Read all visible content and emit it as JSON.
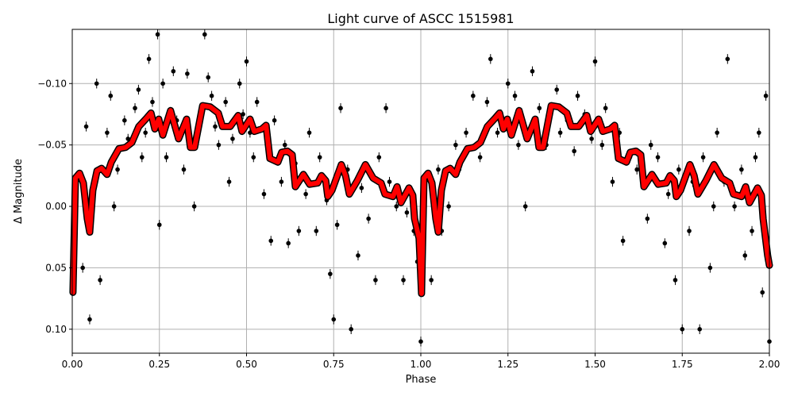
{
  "chart_data": {
    "type": "scatter",
    "title": "Light curve of ASCC 1515981",
    "xlabel": "Phase",
    "ylabel": "Δ Magnitude",
    "xlim": [
      0,
      2
    ],
    "ylim": [
      0.1195,
      -0.1441
    ],
    "y_inverted": true,
    "grid": true,
    "x_ticks": [
      "0.00",
      "0.25",
      "0.50",
      "0.75",
      "1.00",
      "1.25",
      "1.50",
      "1.75",
      "2.00"
    ],
    "x_tick_values": [
      0,
      0.25,
      0.5,
      0.75,
      1.0,
      1.25,
      1.5,
      1.75,
      2.0
    ],
    "y_ticks": [
      "−0.10",
      "−0.05",
      "0.00",
      "0.05",
      "0.10"
    ],
    "y_tick_values": [
      -0.1,
      -0.05,
      0.0,
      0.05,
      0.1
    ],
    "colors": {
      "points": "#000000",
      "model": "#ff0000",
      "model_outline": "#000000",
      "grid": "#b0b0b0"
    },
    "points_error": 0.004,
    "points": [
      [
        0.245,
        -0.14
      ],
      [
        0.22,
        -0.12
      ],
      [
        0.11,
        -0.09
      ],
      [
        0.07,
        -0.1
      ],
      [
        0.04,
        -0.065
      ],
      [
        0.03,
        0.05
      ],
      [
        0.05,
        0.092
      ],
      [
        0.08,
        0.06
      ],
      [
        0.12,
        0.0
      ],
      [
        0.15,
        -0.07
      ],
      [
        0.18,
        -0.08
      ],
      [
        0.2,
        -0.04
      ],
      [
        0.25,
        0.015
      ],
      [
        0.26,
        -0.1
      ],
      [
        0.29,
        -0.11
      ],
      [
        0.33,
        -0.108
      ],
      [
        0.35,
        0.0
      ],
      [
        0.38,
        -0.14
      ],
      [
        0.4,
        -0.09
      ],
      [
        0.42,
        -0.05
      ],
      [
        0.45,
        -0.02
      ],
      [
        0.48,
        -0.1
      ],
      [
        0.5,
        -0.118
      ],
      [
        0.52,
        -0.04
      ],
      [
        0.55,
        -0.01
      ],
      [
        0.57,
        0.028
      ],
      [
        0.6,
        -0.02
      ],
      [
        0.62,
        0.03
      ],
      [
        0.65,
        0.02
      ],
      [
        0.68,
        -0.06
      ],
      [
        0.7,
        0.02
      ],
      [
        0.74,
        0.055
      ],
      [
        0.75,
        0.092
      ],
      [
        0.77,
        -0.08
      ],
      [
        0.8,
        0.1
      ],
      [
        0.82,
        0.04
      ],
      [
        0.87,
        0.06
      ],
      [
        0.9,
        -0.08
      ],
      [
        0.93,
        0.0
      ],
      [
        0.95,
        0.06
      ],
      [
        0.98,
        0.02
      ],
      [
        1.0,
        0.11
      ],
      [
        1.03,
        0.06
      ],
      [
        1.05,
        -0.03
      ],
      [
        1.08,
        0.0
      ],
      [
        1.1,
        -0.05
      ],
      [
        1.15,
        -0.09
      ],
      [
        1.2,
        -0.12
      ],
      [
        1.22,
        -0.06
      ],
      [
        1.25,
        -0.1
      ],
      [
        1.28,
        -0.05
      ],
      [
        1.3,
        0.0
      ],
      [
        1.32,
        -0.11
      ],
      [
        1.37,
        -0.08
      ],
      [
        1.4,
        -0.06
      ],
      [
        1.45,
        -0.09
      ],
      [
        1.5,
        -0.118
      ],
      [
        1.52,
        -0.05
      ],
      [
        1.55,
        -0.02
      ],
      [
        1.58,
        0.028
      ],
      [
        1.6,
        -0.04
      ],
      [
        1.65,
        0.01
      ],
      [
        1.68,
        -0.04
      ],
      [
        1.7,
        0.03
      ],
      [
        1.73,
        0.06
      ],
      [
        1.75,
        0.1
      ],
      [
        1.78,
        -0.02
      ],
      [
        1.8,
        0.1
      ],
      [
        1.83,
        0.05
      ],
      [
        1.85,
        -0.06
      ],
      [
        1.88,
        -0.12
      ],
      [
        1.9,
        0.0
      ],
      [
        1.93,
        0.04
      ],
      [
        1.96,
        -0.04
      ],
      [
        1.98,
        0.07
      ],
      [
        2.0,
        0.11
      ],
      [
        1.99,
        -0.09
      ],
      [
        0.1,
        -0.06
      ],
      [
        0.13,
        -0.03
      ],
      [
        0.16,
        -0.055
      ],
      [
        0.19,
        -0.095
      ],
      [
        0.21,
        -0.06
      ],
      [
        0.23,
        -0.085
      ],
      [
        0.27,
        -0.04
      ],
      [
        0.3,
        -0.07
      ],
      [
        0.32,
        -0.03
      ],
      [
        0.36,
        -0.06
      ],
      [
        0.39,
        -0.105
      ],
      [
        0.41,
        -0.065
      ],
      [
        0.44,
        -0.085
      ],
      [
        0.46,
        -0.055
      ],
      [
        0.49,
        -0.075
      ],
      [
        0.51,
        -0.06
      ],
      [
        0.53,
        -0.085
      ],
      [
        0.56,
        -0.05
      ],
      [
        0.58,
        -0.07
      ],
      [
        0.61,
        -0.05
      ],
      [
        0.64,
        -0.035
      ],
      [
        0.67,
        -0.01
      ],
      [
        0.71,
        -0.04
      ],
      [
        0.73,
        -0.005
      ],
      [
        0.76,
        0.015
      ],
      [
        0.79,
        -0.03
      ],
      [
        0.83,
        -0.015
      ],
      [
        0.85,
        0.01
      ],
      [
        0.88,
        -0.04
      ],
      [
        0.91,
        -0.02
      ],
      [
        0.96,
        0.005
      ],
      [
        0.99,
        0.045
      ],
      [
        1.06,
        0.02
      ],
      [
        1.11,
        -0.03
      ],
      [
        1.13,
        -0.06
      ],
      [
        1.17,
        -0.04
      ],
      [
        1.19,
        -0.085
      ],
      [
        1.23,
        -0.075
      ],
      [
        1.27,
        -0.09
      ],
      [
        1.31,
        -0.06
      ],
      [
        1.34,
        -0.08
      ],
      [
        1.36,
        -0.05
      ],
      [
        1.39,
        -0.095
      ],
      [
        1.42,
        -0.07
      ],
      [
        1.44,
        -0.045
      ],
      [
        1.47,
        -0.075
      ],
      [
        1.49,
        -0.055
      ],
      [
        1.53,
        -0.08
      ],
      [
        1.57,
        -0.06
      ],
      [
        1.62,
        -0.03
      ],
      [
        1.66,
        -0.05
      ],
      [
        1.71,
        -0.01
      ],
      [
        1.74,
        -0.03
      ],
      [
        1.77,
        0.02
      ],
      [
        1.81,
        -0.04
      ],
      [
        1.84,
        0.0
      ],
      [
        1.87,
        -0.02
      ],
      [
        1.92,
        -0.03
      ],
      [
        1.95,
        0.02
      ],
      [
        1.97,
        -0.06
      ]
    ],
    "model_curve": [
      [
        0.002,
        0.07
      ],
      [
        0.009,
        -0.023
      ],
      [
        0.021,
        -0.027
      ],
      [
        0.032,
        -0.019
      ],
      [
        0.043,
        0.01
      ],
      [
        0.05,
        0.021
      ],
      [
        0.059,
        -0.013
      ],
      [
        0.071,
        -0.029
      ],
      [
        0.084,
        -0.031
      ],
      [
        0.1,
        -0.026
      ],
      [
        0.112,
        -0.036
      ],
      [
        0.134,
        -0.047
      ],
      [
        0.153,
        -0.048
      ],
      [
        0.171,
        -0.052
      ],
      [
        0.191,
        -0.065
      ],
      [
        0.214,
        -0.072
      ],
      [
        0.226,
        -0.076
      ],
      [
        0.237,
        -0.063
      ],
      [
        0.248,
        -0.071
      ],
      [
        0.26,
        -0.058
      ],
      [
        0.282,
        -0.078
      ],
      [
        0.305,
        -0.055
      ],
      [
        0.328,
        -0.071
      ],
      [
        0.339,
        -0.048
      ],
      [
        0.351,
        -0.048
      ],
      [
        0.374,
        -0.082
      ],
      [
        0.396,
        -0.081
      ],
      [
        0.419,
        -0.076
      ],
      [
        0.431,
        -0.065
      ],
      [
        0.453,
        -0.065
      ],
      [
        0.476,
        -0.074
      ],
      [
        0.487,
        -0.061
      ],
      [
        0.51,
        -0.071
      ],
      [
        0.522,
        -0.061
      ],
      [
        0.544,
        -0.063
      ],
      [
        0.556,
        -0.066
      ],
      [
        0.567,
        -0.039
      ],
      [
        0.59,
        -0.036
      ],
      [
        0.601,
        -0.044
      ],
      [
        0.617,
        -0.045
      ],
      [
        0.631,
        -0.042
      ],
      [
        0.64,
        -0.016
      ],
      [
        0.663,
        -0.026
      ],
      [
        0.681,
        -0.018
      ],
      [
        0.704,
        -0.019
      ],
      [
        0.715,
        -0.025
      ],
      [
        0.727,
        -0.021
      ],
      [
        0.733,
        -0.008
      ],
      [
        0.745,
        -0.013
      ],
      [
        0.772,
        -0.034
      ],
      [
        0.784,
        -0.025
      ],
      [
        0.795,
        -0.01
      ],
      [
        0.818,
        -0.021
      ],
      [
        0.841,
        -0.034
      ],
      [
        0.863,
        -0.023
      ],
      [
        0.886,
        -0.019
      ],
      [
        0.897,
        -0.01
      ],
      [
        0.92,
        -0.008
      ],
      [
        0.932,
        -0.016
      ],
      [
        0.943,
        -0.003
      ],
      [
        0.966,
        -0.015
      ],
      [
        0.977,
        -0.009
      ],
      [
        0.982,
        0.01
      ],
      [
        0.995,
        0.026
      ],
      [
        1.002,
        0.071
      ],
      [
        1.009,
        -0.023
      ],
      [
        1.021,
        -0.027
      ],
      [
        1.032,
        -0.019
      ],
      [
        1.043,
        0.01
      ],
      [
        1.05,
        0.021
      ],
      [
        1.059,
        -0.013
      ],
      [
        1.071,
        -0.029
      ],
      [
        1.084,
        -0.031
      ],
      [
        1.1,
        -0.026
      ],
      [
        1.112,
        -0.036
      ],
      [
        1.134,
        -0.047
      ],
      [
        1.153,
        -0.048
      ],
      [
        1.171,
        -0.052
      ],
      [
        1.191,
        -0.065
      ],
      [
        1.214,
        -0.072
      ],
      [
        1.226,
        -0.076
      ],
      [
        1.237,
        -0.063
      ],
      [
        1.248,
        -0.071
      ],
      [
        1.26,
        -0.058
      ],
      [
        1.282,
        -0.078
      ],
      [
        1.305,
        -0.055
      ],
      [
        1.328,
        -0.071
      ],
      [
        1.339,
        -0.048
      ],
      [
        1.351,
        -0.048
      ],
      [
        1.374,
        -0.082
      ],
      [
        1.396,
        -0.081
      ],
      [
        1.419,
        -0.076
      ],
      [
        1.431,
        -0.065
      ],
      [
        1.453,
        -0.065
      ],
      [
        1.476,
        -0.074
      ],
      [
        1.487,
        -0.061
      ],
      [
        1.51,
        -0.071
      ],
      [
        1.522,
        -0.061
      ],
      [
        1.544,
        -0.063
      ],
      [
        1.556,
        -0.066
      ],
      [
        1.567,
        -0.039
      ],
      [
        1.59,
        -0.036
      ],
      [
        1.601,
        -0.044
      ],
      [
        1.617,
        -0.045
      ],
      [
        1.631,
        -0.042
      ],
      [
        1.64,
        -0.016
      ],
      [
        1.663,
        -0.026
      ],
      [
        1.681,
        -0.018
      ],
      [
        1.704,
        -0.019
      ],
      [
        1.715,
        -0.025
      ],
      [
        1.727,
        -0.021
      ],
      [
        1.733,
        -0.008
      ],
      [
        1.745,
        -0.013
      ],
      [
        1.772,
        -0.034
      ],
      [
        1.784,
        -0.025
      ],
      [
        1.795,
        -0.01
      ],
      [
        1.818,
        -0.021
      ],
      [
        1.841,
        -0.034
      ],
      [
        1.863,
        -0.023
      ],
      [
        1.886,
        -0.019
      ],
      [
        1.897,
        -0.01
      ],
      [
        1.92,
        -0.008
      ],
      [
        1.932,
        -0.016
      ],
      [
        1.943,
        -0.003
      ],
      [
        1.966,
        -0.015
      ],
      [
        1.977,
        -0.009
      ],
      [
        1.982,
        0.01
      ],
      [
        1.995,
        0.04
      ],
      [
        2.0,
        0.048
      ]
    ]
  }
}
